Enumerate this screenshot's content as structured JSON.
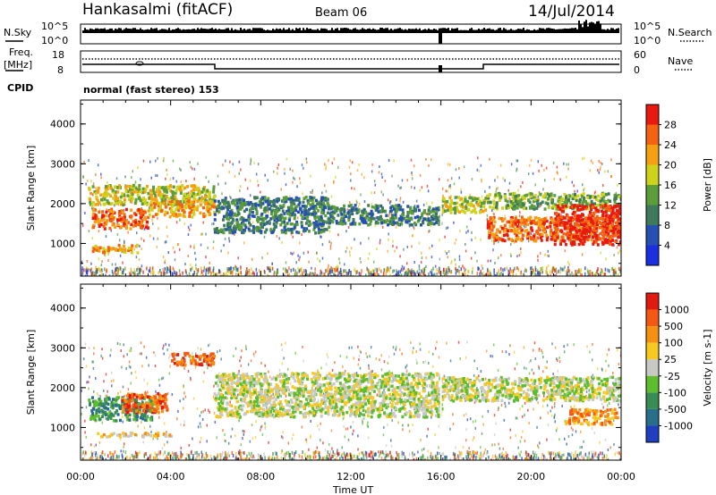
{
  "header": {
    "station": "Hankasalmi (fitACF)",
    "beam": "Beam 06",
    "date": "14/Jul/2014",
    "cpid_label": "CPID",
    "cpid_value": "normal (fast stereo) 153"
  },
  "status_panels": {
    "nsky": {
      "label": "N.Sky",
      "tick_top": "10^5",
      "tick_bottom": "10^0"
    },
    "nsearch": {
      "label": "N.Search",
      "tick_top": "10^5",
      "tick_bottom": "10^0"
    },
    "freq": {
      "label_line1": "Freq.",
      "label_line2": "[MHz]",
      "tick_top": "18",
      "tick_bottom": "8"
    },
    "nave": {
      "label": "Nave",
      "tick_top": "60",
      "tick_bottom": "0"
    }
  },
  "chart_data": [
    {
      "type": "heatmap",
      "name": "power",
      "ylabel": "Slant Range [km]",
      "ylim": [
        180,
        4600
      ],
      "yticks": [
        "1000",
        "2000",
        "3000",
        "4000"
      ],
      "xlabel": "",
      "colorbar_label": "Power [dB]",
      "colorbar_ticks": [
        "4",
        "8",
        "12",
        "16",
        "20",
        "24",
        "28"
      ],
      "colors": [
        "#1a2fe0",
        "#2650b4",
        "#3f7a5c",
        "#5a9d3a",
        "#cfd21a",
        "#f5a012",
        "#f56212",
        "#e81a10"
      ],
      "bands": [
        {
          "t0": 0.3,
          "t1": 5.9,
          "r0": 2000,
          "r1": 2500,
          "level": 4
        },
        {
          "t0": 0.5,
          "t1": 3.0,
          "r0": 1400,
          "r1": 1900,
          "level": 6
        },
        {
          "t0": 3.0,
          "t1": 5.9,
          "r0": 1700,
          "r1": 2100,
          "level": 5
        },
        {
          "t0": 0.5,
          "t1": 2.5,
          "r0": 800,
          "r1": 1000,
          "level": 5
        },
        {
          "t0": 5.9,
          "t1": 11.0,
          "r0": 1300,
          "r1": 2200,
          "level": 2
        },
        {
          "t0": 11.0,
          "t1": 16.0,
          "r0": 1500,
          "r1": 2000,
          "level": 2
        },
        {
          "t0": 16.0,
          "t1": 18.0,
          "r0": 1800,
          "r1": 2200,
          "level": 4
        },
        {
          "t0": 18.0,
          "t1": 24.0,
          "r0": 1100,
          "r1": 1700,
          "level": 6
        },
        {
          "t0": 18.0,
          "t1": 24.0,
          "r0": 1900,
          "r1": 2300,
          "level": 3
        },
        {
          "t0": 21.0,
          "t1": 24.0,
          "r0": 1000,
          "r1": 2000,
          "level": 7
        }
      ]
    },
    {
      "type": "heatmap",
      "name": "velocity",
      "ylabel": "Slant Range [km]",
      "ylim": [
        180,
        4600
      ],
      "yticks": [
        "1000",
        "2000",
        "3000",
        "4000"
      ],
      "xlabel": "Time UT",
      "xticks": [
        "00:00",
        "04:00",
        "08:00",
        "12:00",
        "16:00",
        "20:00",
        "00:00"
      ],
      "colorbar_label": "Velocity [m s-1]",
      "colorbar_ticks": [
        "1000",
        "500",
        "100",
        "25",
        "-25",
        "-100",
        "-500",
        "-1000"
      ],
      "colors": [
        "#1f3ec0",
        "#2a6f8a",
        "#3a8d52",
        "#5ebd2c",
        "#c8c8c4",
        "#f7c820",
        "#f59012",
        "#f55812",
        "#e01a10"
      ],
      "bands": [
        {
          "t0": 0.3,
          "t1": 3.2,
          "r0": 1200,
          "r1": 1800,
          "level": 2
        },
        {
          "t0": 1.8,
          "t1": 3.8,
          "r0": 1400,
          "r1": 1900,
          "level": 7
        },
        {
          "t0": 4.0,
          "t1": 5.9,
          "r0": 2600,
          "r1": 2900,
          "level": 7
        },
        {
          "t0": 5.9,
          "t1": 16.0,
          "r0": 1300,
          "r1": 2400,
          "level": 4
        },
        {
          "t0": 16.0,
          "t1": 24.0,
          "r0": 1700,
          "r1": 2300,
          "level": 4
        },
        {
          "t0": 21.5,
          "t1": 23.8,
          "r0": 1100,
          "r1": 1500,
          "level": 6
        },
        {
          "t0": 0.5,
          "t1": 4.0,
          "r0": 800,
          "r1": 900,
          "level": 5
        }
      ]
    }
  ]
}
